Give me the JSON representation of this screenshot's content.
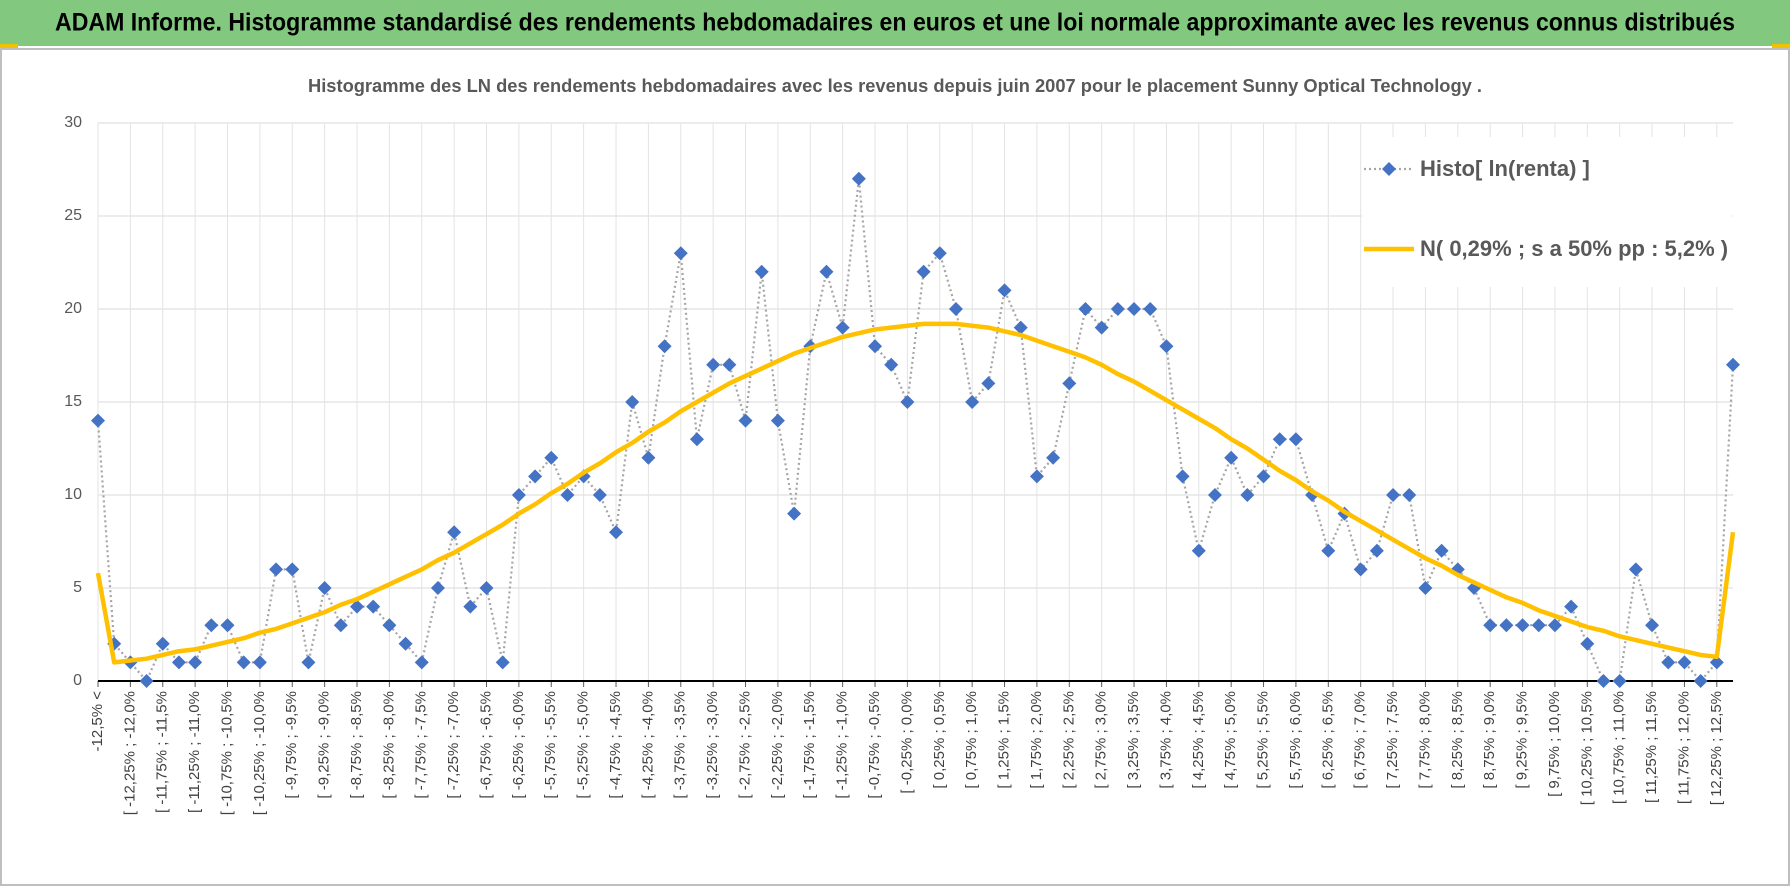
{
  "header": {
    "title": "ADAM Informe. Histogramme standardisé des rendements hebdomadaires en euros et une loi normale approximante avec les revenus connus distribués"
  },
  "chart_data": {
    "type": "line",
    "title": "Histogramme des LN des rendements hebdomadaires avec les revenus depuis juin 2007 pour le placement Sunny Optical Technology .",
    "categories": [
      "-12,5% <",
      null,
      "[ -12,25% ; -12,0%",
      null,
      "[ -11,75% ; -11,5%",
      null,
      "[ -11,25% ; -11,0%",
      null,
      "[ -10,75% ; -10,5%",
      null,
      "[ -10,25% ; -10,0%",
      null,
      "[ -9,75% ; -9,5%",
      null,
      "[ -9,25% ; -9,0%",
      null,
      "[ -8,75% ; -8,5%",
      null,
      "[ -8,25% ; -8,0%",
      null,
      "[ -7,75% ; -7,5%",
      null,
      "[ -7,25% ; -7,0%",
      null,
      "[ -6,75% ; -6,5%",
      null,
      "[ -6,25% ; -6,0%",
      null,
      "[ -5,75% ; -5,5%",
      null,
      "[ -5,25% ; -5,0%",
      null,
      "[ -4,75% ; -4,5%",
      null,
      "[ -4,25% ; -4,0%",
      null,
      "[ -3,75% ; -3,5%",
      null,
      "[ -3,25% ; -3,0%",
      null,
      "[ -2,75% ; -2,5%",
      null,
      "[ -2,25% ; -2,0%",
      null,
      "[ -1,75% ; -1,5%",
      null,
      "[ -1,25% ; -1,0%",
      null,
      "[ -0,75% ; -0,5%",
      null,
      "[ -0,25% ; 0,0%",
      null,
      "[ 0,25% ; 0,5%",
      null,
      "[ 0,75% ; 1,0%",
      null,
      "[ 1,25% ; 1,5%",
      null,
      "[ 1,75% ; 2,0%",
      null,
      "[ 2,25% ; 2,5%",
      null,
      "[ 2,75% ; 3,0%",
      null,
      "[ 3,25% ; 3,5%",
      null,
      "[ 3,75% ; 4,0%",
      null,
      "[ 4,25% ; 4,5%",
      null,
      "[ 4,75% ; 5,0%",
      null,
      "[ 5,25% ; 5,5%",
      null,
      "[ 5,75% ; 6,0%",
      null,
      "[ 6,25% ; 6,5%",
      null,
      "[ 6,75% ; 7,0%",
      null,
      "[ 7,25% ; 7,5%",
      null,
      "[ 7,75% ; 8,0%",
      null,
      "[ 8,25% ; 8,5%",
      null,
      "[ 8,75% ; 9,0%",
      null,
      "[ 9,25% ; 9,5%",
      null,
      "[ 9,75% ; 10,0%",
      null,
      "[ 10,25% ; 10,5%",
      null,
      "[ 10,75% ; 11,0%",
      null,
      "[ 11,25% ; 11,5%",
      null,
      "[ 11,75% ; 12,0%",
      null,
      "[ 12,25% ; 12,5%",
      null
    ],
    "series": [
      {
        "name": "Histo[ ln(renta) ]",
        "color": "#4472c4",
        "line_color": "#a5a5a5",
        "line_style": "dotted",
        "marker": "diamond",
        "values": [
          14,
          2,
          1,
          0,
          2,
          1,
          1,
          3,
          3,
          1,
          1,
          6,
          6,
          1,
          5,
          3,
          4,
          4,
          3,
          2,
          1,
          5,
          8,
          4,
          5,
          1,
          10,
          11,
          12,
          10,
          11,
          10,
          8,
          15,
          12,
          18,
          23,
          13,
          17,
          17,
          14,
          22,
          14,
          9,
          18,
          22,
          19,
          27,
          18,
          17,
          15,
          22,
          23,
          20,
          15,
          16,
          21,
          19,
          11,
          12,
          16,
          20,
          19,
          20,
          20,
          20,
          18,
          11,
          7,
          10,
          12,
          10,
          11,
          13,
          13,
          10,
          7,
          9,
          6,
          7,
          10,
          10,
          5,
          7,
          6,
          5,
          3,
          3,
          3,
          3,
          3,
          4,
          2,
          0,
          0,
          6,
          3,
          1,
          1,
          0,
          1,
          17
        ]
      },
      {
        "name": "N( 0,29% ; s a 50% pp : 5,2% )",
        "color": "#ffc000",
        "line_style": "solid",
        "marker": "none",
        "values": [
          5.8,
          1.0,
          1.1,
          1.2,
          1.4,
          1.6,
          1.7,
          1.9,
          2.1,
          2.3,
          2.6,
          2.8,
          3.1,
          3.4,
          3.7,
          4.1,
          4.4,
          4.8,
          5.2,
          5.6,
          6.0,
          6.5,
          6.9,
          7.4,
          7.9,
          8.4,
          9.0,
          9.5,
          10.1,
          10.6,
          11.2,
          11.7,
          12.3,
          12.8,
          13.4,
          13.9,
          14.5,
          15.0,
          15.5,
          16.0,
          16.4,
          16.8,
          17.2,
          17.6,
          17.9,
          18.2,
          18.5,
          18.7,
          18.9,
          19.0,
          19.1,
          19.2,
          19.2,
          19.2,
          19.1,
          19.0,
          18.8,
          18.6,
          18.3,
          18.0,
          17.7,
          17.4,
          17.0,
          16.5,
          16.1,
          15.6,
          15.1,
          14.6,
          14.1,
          13.6,
          13.0,
          12.5,
          11.9,
          11.3,
          10.8,
          10.2,
          9.7,
          9.1,
          8.6,
          8.1,
          7.6,
          7.1,
          6.6,
          6.2,
          5.7,
          5.3,
          4.9,
          4.5,
          4.2,
          3.8,
          3.5,
          3.2,
          2.9,
          2.7,
          2.4,
          2.2,
          2.0,
          1.8,
          1.6,
          1.4,
          1.3,
          8.0
        ]
      }
    ],
    "ylim": [
      0,
      30
    ],
    "yticks": [
      0,
      5,
      10,
      15,
      20,
      25,
      30
    ],
    "grid": true,
    "legend": "top-right"
  }
}
